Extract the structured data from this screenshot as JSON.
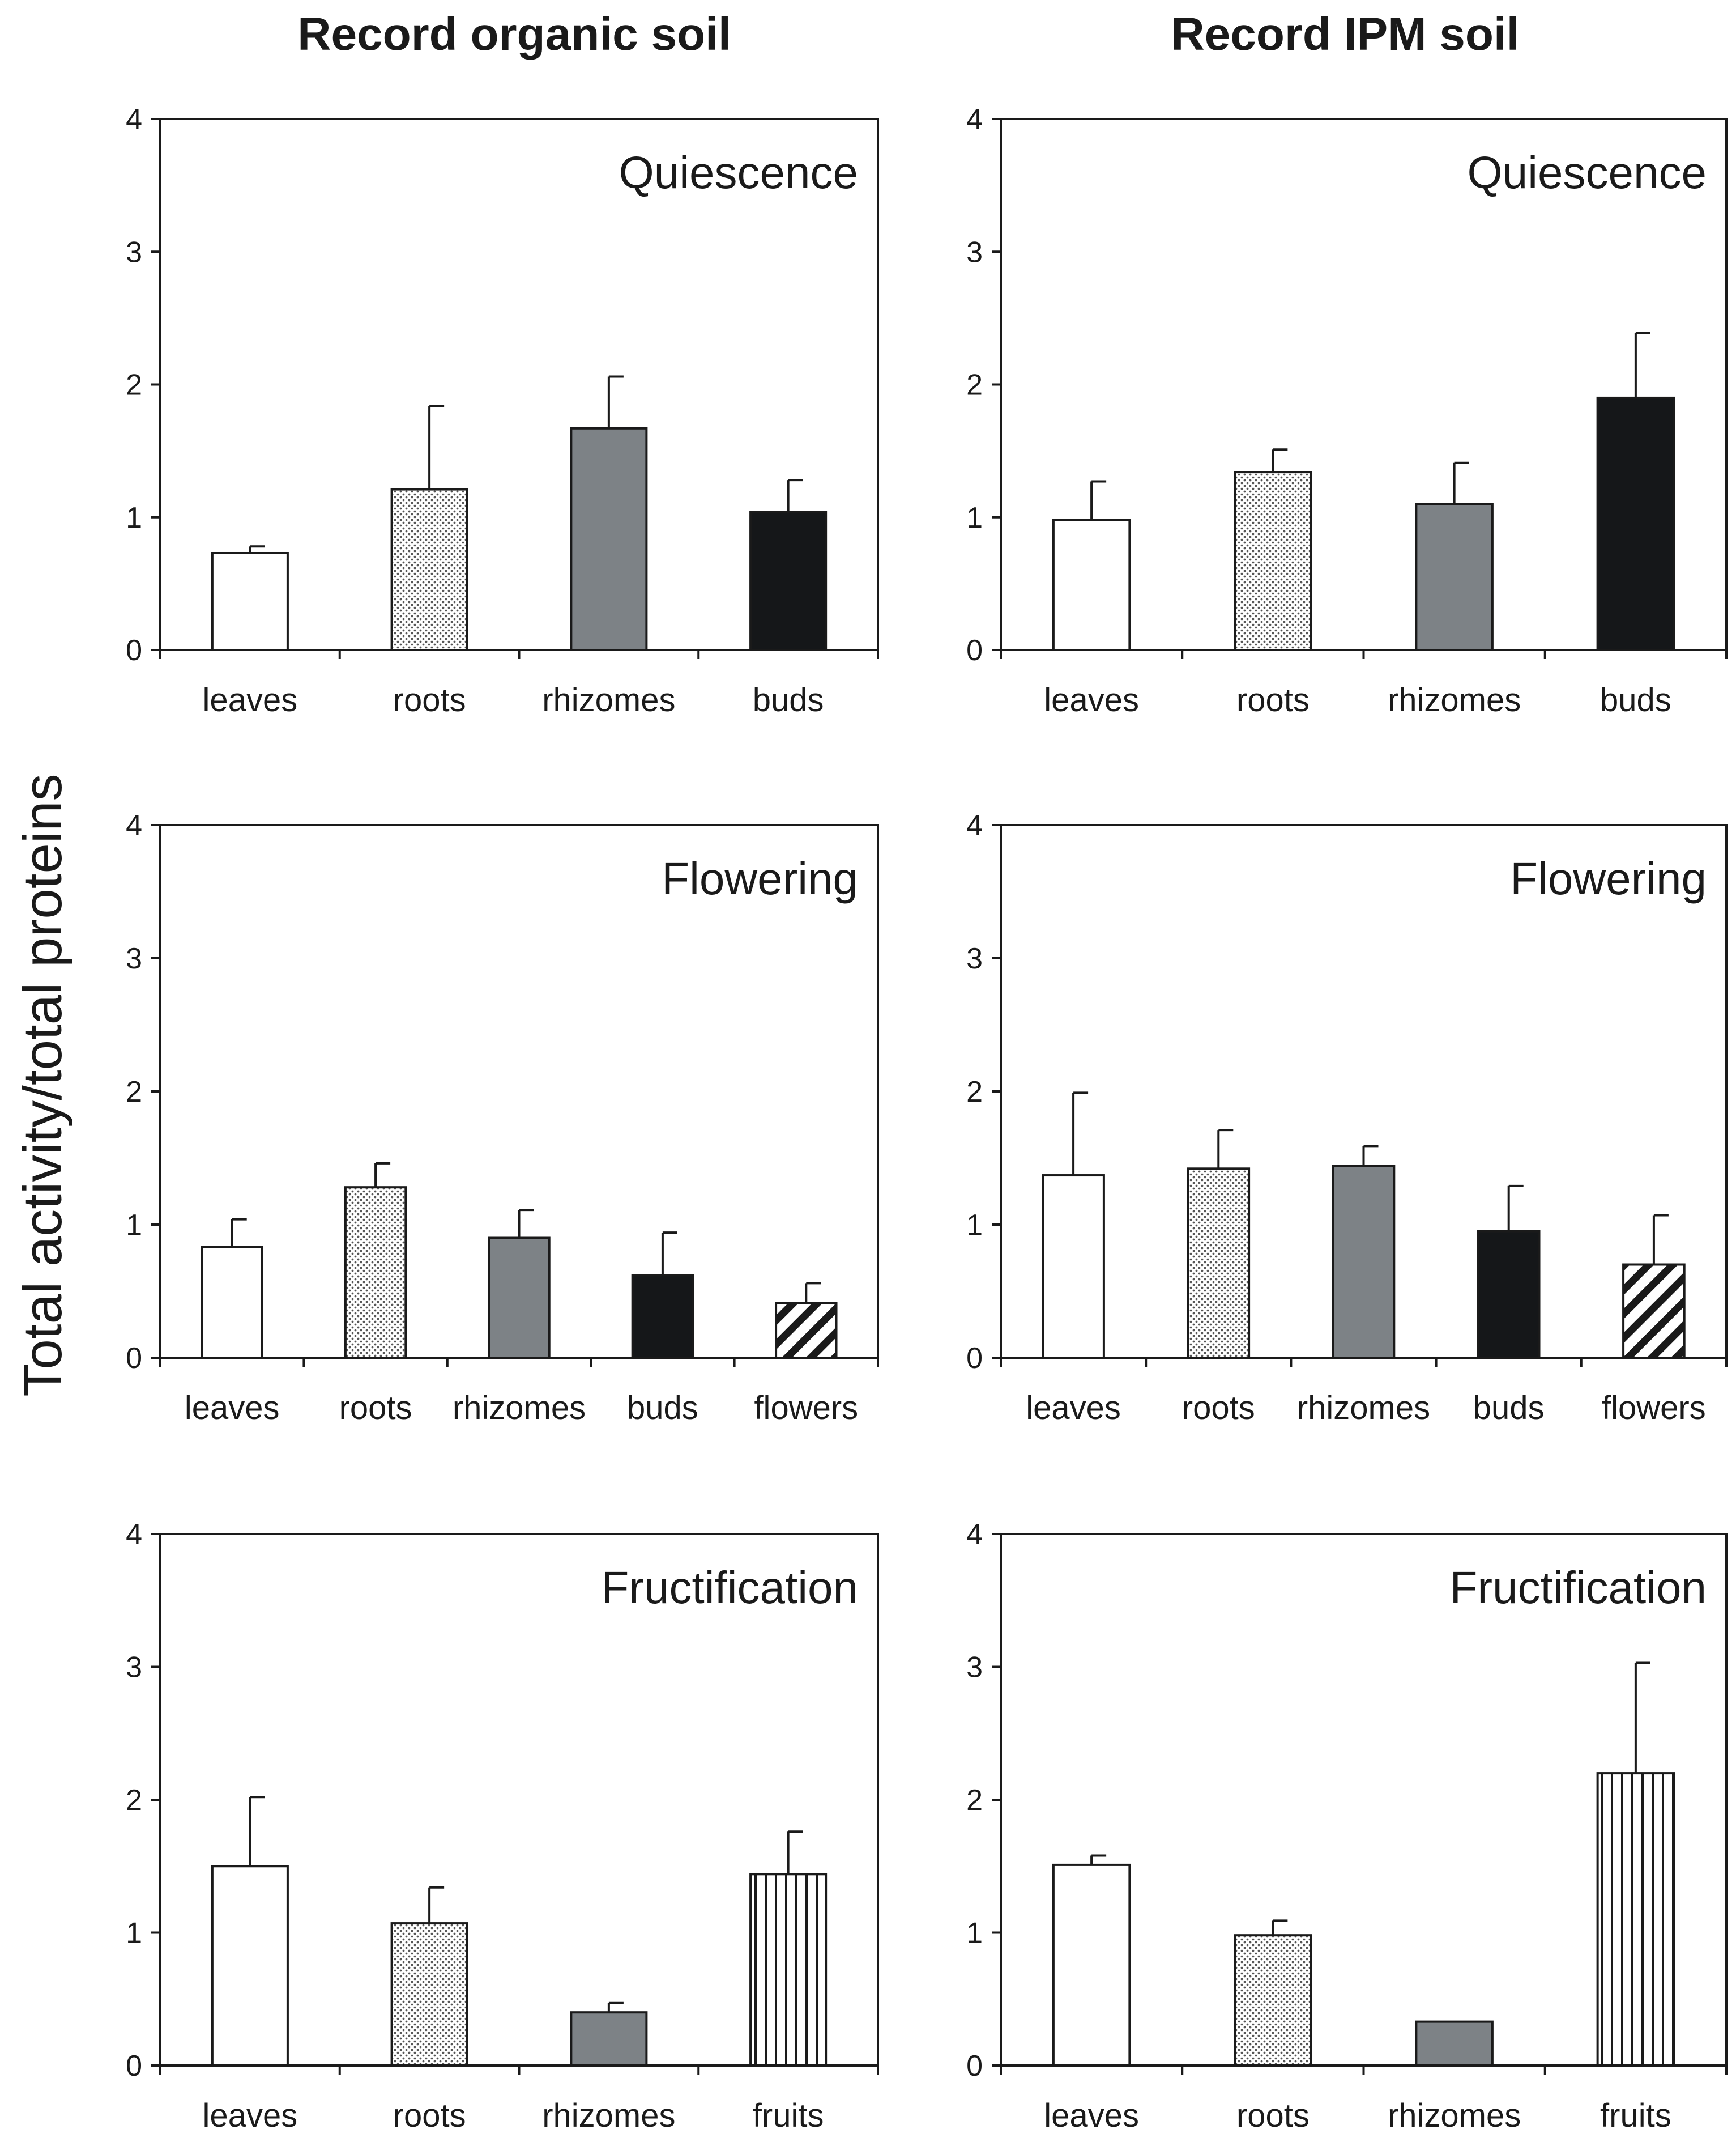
{
  "figure": {
    "y_axis_label": "Total activity/total proteins",
    "column_titles": [
      "Record organic soil",
      "Record IPM soil"
    ]
  },
  "chart_data": [
    {
      "type": "bar",
      "title": "Quiescence",
      "soil": "Record organic soil",
      "categories": [
        "leaves",
        "roots",
        "rhizomes",
        "buds"
      ],
      "values": [
        0.73,
        1.21,
        1.67,
        1.04
      ],
      "errors": [
        0.05,
        0.63,
        0.39,
        0.24
      ],
      "patterns": [
        "white",
        "dots",
        "gray",
        "black"
      ],
      "yticks": [
        "0",
        "1",
        "2",
        "3",
        "4"
      ],
      "ylim": [
        0,
        4
      ]
    },
    {
      "type": "bar",
      "title": "Quiescence",
      "soil": "Record IPM soil",
      "categories": [
        "leaves",
        "roots",
        "rhizomes",
        "buds"
      ],
      "values": [
        0.98,
        1.34,
        1.1,
        1.9
      ],
      "errors": [
        0.29,
        0.17,
        0.31,
        0.49
      ],
      "patterns": [
        "white",
        "dots",
        "gray",
        "black"
      ],
      "yticks": [
        "0",
        "1",
        "2",
        "3",
        "4"
      ],
      "ylim": [
        0,
        4
      ]
    },
    {
      "type": "bar",
      "title": "Flowering",
      "soil": "Record organic soil",
      "categories": [
        "leaves",
        "roots",
        "rhizomes",
        "buds",
        "flowers"
      ],
      "values": [
        0.83,
        1.28,
        0.9,
        0.62,
        0.41
      ],
      "errors": [
        0.21,
        0.18,
        0.21,
        0.32,
        0.15
      ],
      "patterns": [
        "white",
        "dots",
        "gray",
        "black",
        "diag"
      ],
      "yticks": [
        "0",
        "1",
        "2",
        "3",
        "4"
      ],
      "ylim": [
        0,
        4
      ]
    },
    {
      "type": "bar",
      "title": "Flowering",
      "soil": "Record IPM soil",
      "categories": [
        "leaves",
        "roots",
        "rhizomes",
        "buds",
        "flowers"
      ],
      "values": [
        1.37,
        1.42,
        1.44,
        0.95,
        0.7
      ],
      "errors": [
        0.62,
        0.29,
        0.15,
        0.34,
        0.37
      ],
      "patterns": [
        "white",
        "dots",
        "gray",
        "black",
        "diag"
      ],
      "yticks": [
        "0",
        "1",
        "2",
        "3",
        "4"
      ],
      "ylim": [
        0,
        4
      ]
    },
    {
      "type": "bar",
      "title": "Fructification",
      "soil": "Record organic soil",
      "categories": [
        "leaves",
        "roots",
        "rhizomes",
        "fruits"
      ],
      "values": [
        1.5,
        1.07,
        0.4,
        1.44
      ],
      "errors": [
        0.52,
        0.27,
        0.07,
        0.32
      ],
      "patterns": [
        "white",
        "dots",
        "gray",
        "vert"
      ],
      "yticks": [
        "0",
        "1",
        "2",
        "3",
        "4"
      ],
      "ylim": [
        0,
        4
      ]
    },
    {
      "type": "bar",
      "title": "Fructification",
      "soil": "Record IPM soil",
      "categories": [
        "leaves",
        "roots",
        "rhizomes",
        "fruits"
      ],
      "values": [
        1.51,
        0.98,
        0.33,
        2.2
      ],
      "errors": [
        0.07,
        0.11,
        0.0,
        0.83
      ],
      "patterns": [
        "white",
        "dots",
        "gray",
        "vert"
      ],
      "yticks": [
        "0",
        "1",
        "2",
        "3",
        "4"
      ],
      "ylim": [
        0,
        4
      ]
    }
  ]
}
